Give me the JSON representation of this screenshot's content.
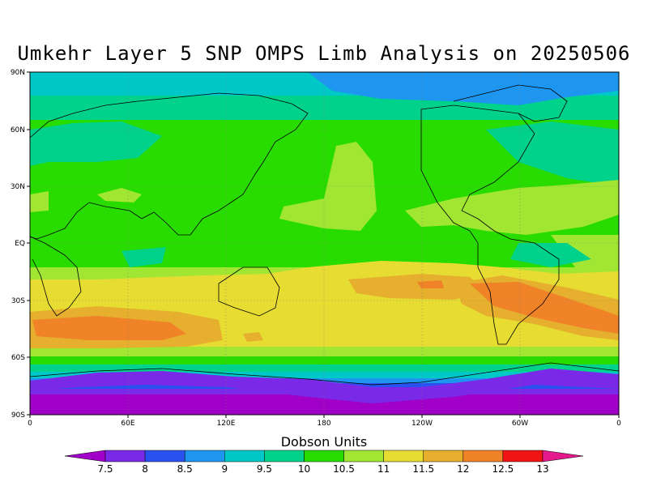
{
  "title": "Umkehr Layer 5 SNP OMPS Limb Analysis on 20250506",
  "lat_labels": [
    "90N",
    "60N",
    "30N",
    "EQ",
    "30S",
    "60S",
    "90S"
  ],
  "lon_labels": [
    "0",
    "60E",
    "120E",
    "180",
    "120W",
    "60W",
    "0"
  ],
  "colorbar": {
    "title": "Dobson Units",
    "labels": [
      "7.5",
      "8",
      "8.5",
      "9",
      "9.5",
      "10",
      "10.5",
      "11",
      "11.5",
      "12",
      "12.5",
      "13"
    ],
    "colors": [
      "#a000c8",
      "#7a2ae6",
      "#2a52f0",
      "#1e96f0",
      "#00c8c8",
      "#00d28c",
      "#28dc00",
      "#a0e632",
      "#e6dc32",
      "#e6af2d",
      "#f08228",
      "#f01414",
      "#e6198c"
    ]
  }
}
